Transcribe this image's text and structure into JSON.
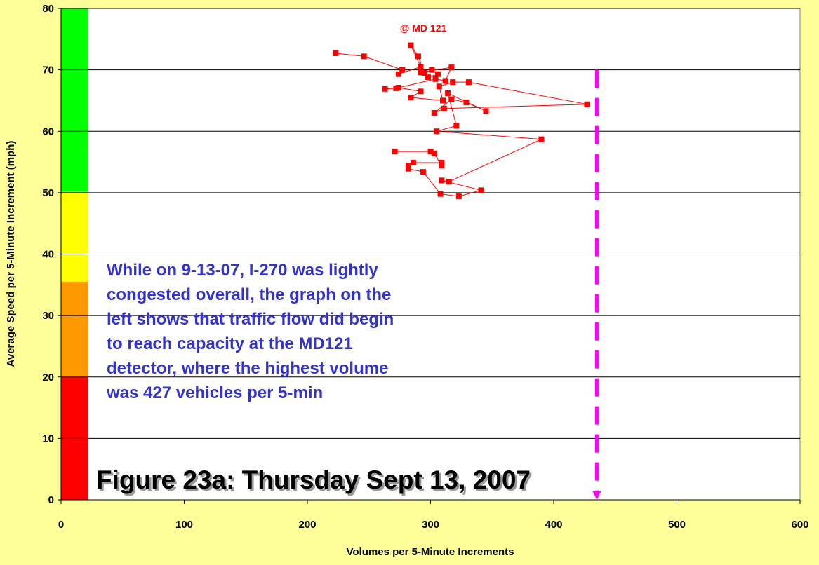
{
  "chart_data": {
    "type": "scatter",
    "lines": true,
    "title": "Figure 23a: Thursday Sept 13, 2007",
    "location_label": "@ MD 121",
    "note": [
      "While on 9-13-07, I-270 was lightly",
      "congested overall, the graph on the",
      "left shows that traffic flow did begin",
      "to reach capacity at the MD121",
      "detector, where the highest volume",
      "was 427 vehicles per 5-min"
    ],
    "x_label": "Volumes per 5-Minute Increments",
    "y_label": "Average Speed per 5-Minute Increment (mph)",
    "color": "#ff0000",
    "x": [
      223,
      246,
      277,
      274,
      292,
      284,
      290,
      295,
      301,
      306,
      298,
      292,
      317,
      312,
      304,
      272,
      263,
      274,
      292,
      284,
      310,
      307,
      318,
      331,
      427,
      311,
      303,
      317,
      329,
      345,
      314,
      321,
      305,
      390,
      315,
      309,
      341,
      323,
      308,
      294,
      282,
      282,
      286,
      309,
      309,
      303,
      300,
      271
    ],
    "values": [
      72.7,
      72.2,
      70.0,
      69.3,
      70.5,
      74.0,
      72.2,
      69.5,
      70.0,
      69.3,
      68.8,
      69.6,
      70.4,
      68.2,
      68.5,
      67.0,
      66.9,
      67.1,
      66.5,
      65.5,
      65.0,
      67.3,
      68.0,
      68.0,
      64.4,
      63.7,
      63.0,
      65.2,
      64.7,
      63.3,
      66.2,
      60.9,
      60.0,
      58.7,
      51.8,
      52.0,
      50.4,
      49.4,
      49.8,
      53.4,
      53.9,
      54.4,
      54.9,
      54.9,
      54.4,
      56.4,
      56.7,
      56.7
    ],
    "xlim": [
      0,
      600
    ],
    "xticks": [
      0,
      100,
      200,
      300,
      400,
      500,
      600
    ],
    "ylim": [
      0,
      80
    ],
    "yticks": [
      0,
      10,
      20,
      30,
      40,
      50,
      60,
      70,
      80
    ],
    "grid": true,
    "bands": [
      {
        "from": 0,
        "to": 20,
        "color": "#ff0000"
      },
      {
        "from": 20,
        "to": 35.5,
        "color": "#ff9900"
      },
      {
        "from": 35.5,
        "to": 50.2,
        "color": "#ffff00"
      },
      {
        "from": 50.2,
        "to": 80,
        "color": "#00ff00"
      }
    ],
    "band_x": [
      0,
      22
    ],
    "reference_line": {
      "x": 435,
      "from": 0,
      "to": 70,
      "color": "#ff00ff"
    }
  }
}
